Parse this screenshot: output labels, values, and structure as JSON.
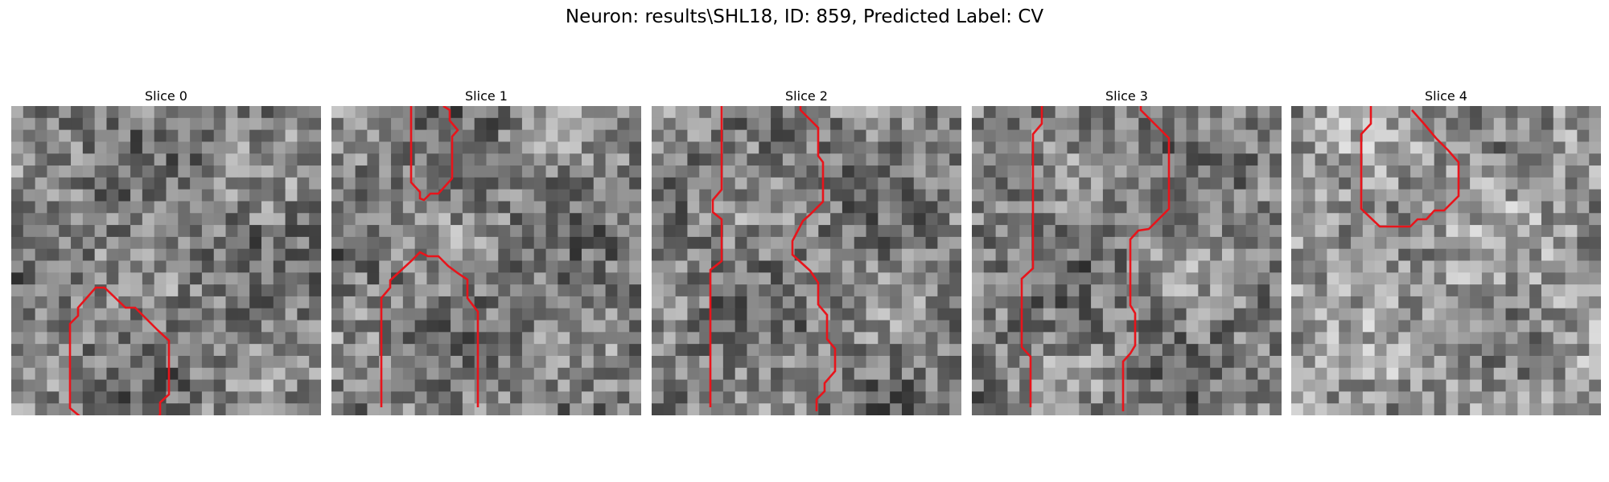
{
  "figure": {
    "title": "Neuron: results\\SHL18, ID: 859, Predicted Label: CV"
  },
  "panels": [
    {
      "title": "Slice 0",
      "seed": 11,
      "brightness": "mid",
      "contour_color": "#e8141b"
    },
    {
      "title": "Slice 1",
      "seed": 23,
      "brightness": "mid",
      "contour_color": "#e8141b"
    },
    {
      "title": "Slice 2",
      "seed": 37,
      "brightness": "mid",
      "contour_color": "#e8141b"
    },
    {
      "title": "Slice 3",
      "seed": 41,
      "brightness": "mid",
      "contour_color": "#e8141b"
    },
    {
      "title": "Slice 4",
      "seed": 53,
      "brightness": "light",
      "contour_color": "#e8141b"
    }
  ]
}
